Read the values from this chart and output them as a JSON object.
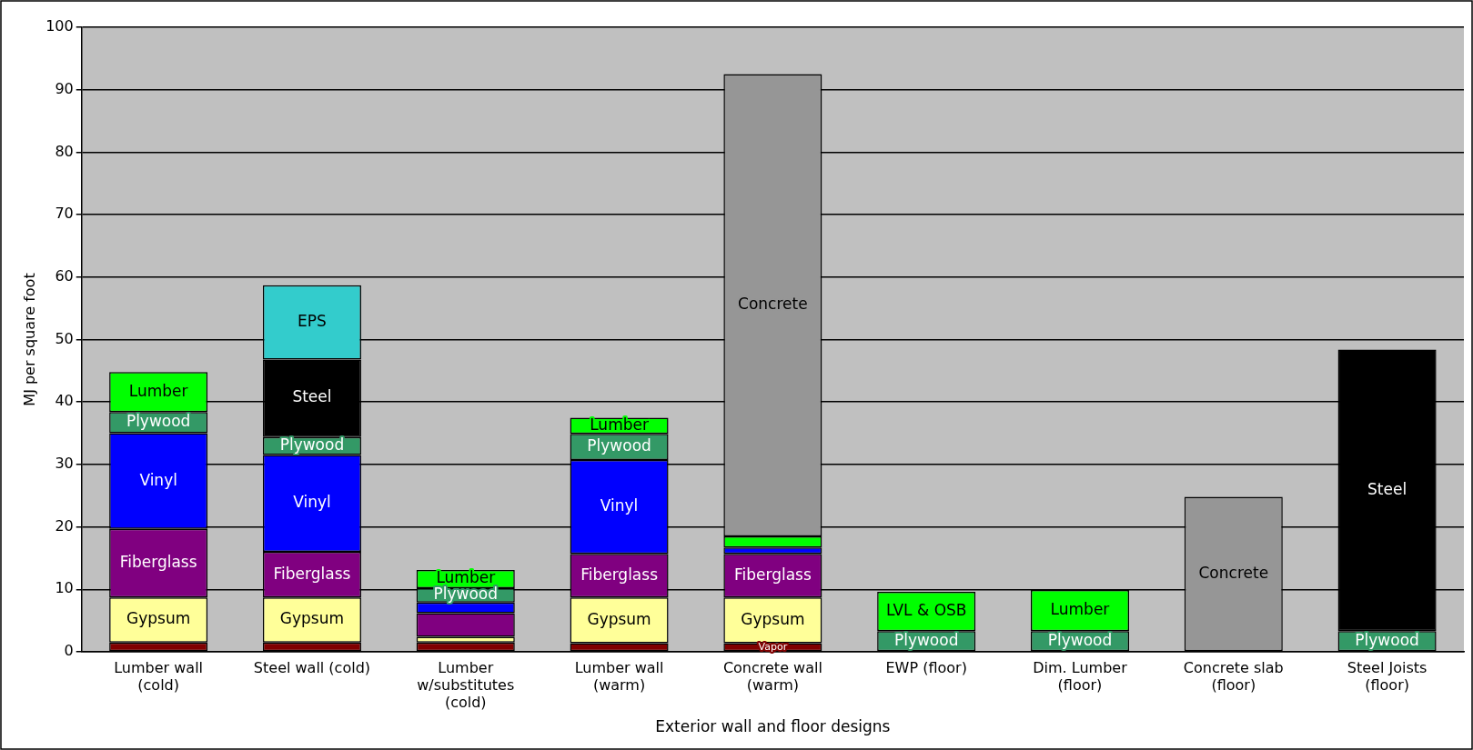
{
  "chart_data": {
    "type": "bar",
    "stacked": true,
    "xlabel": "Exterior wall and floor designs",
    "ylabel": "MJ per square foot",
    "categories": [
      "Lumber wall\n(cold)",
      "Steel wall (cold)",
      "Lumber\nw/substitutes\n(cold)",
      "Lumber wall\n(warm)",
      "Concrete wall\n(warm)",
      "EWP (floor)",
      "Dim. Lumber\n(floor)",
      "Concrete slab\n(floor)",
      "Steel Joists\n(floor)"
    ],
    "series": [
      {
        "color": "#800000",
        "values": [
          1.5,
          1.5,
          1.5,
          1.4,
          1.4,
          null,
          null,
          null,
          null
        ],
        "value_labels": [
          null,
          null,
          null,
          null,
          "Vapor",
          null,
          null,
          null,
          null
        ]
      },
      {
        "color": "#ffff99",
        "values": [
          7.2,
          7.2,
          0.9,
          7.3,
          7.3,
          null,
          null,
          null,
          null
        ],
        "value_labels": [
          "Gypsum",
          "Gypsum",
          null,
          "Gypsum",
          "Gypsum",
          null,
          null,
          null,
          null
        ]
      },
      {
        "color": "#800080",
        "values": [
          11,
          7.3,
          3.8,
          7,
          7,
          null,
          null,
          null,
          null
        ],
        "value_labels": [
          "Fiberglass",
          "Fiberglass",
          null,
          "Fiberglass",
          "Fiberglass",
          null,
          null,
          null,
          null
        ]
      },
      {
        "color": "#0000ff",
        "values": [
          15.3,
          15.5,
          1.7,
          15,
          1,
          null,
          null,
          null,
          null
        ],
        "value_labels": [
          "Vinyl",
          "Vinyl",
          null,
          "Vinyl",
          null,
          null,
          null,
          null,
          null
        ]
      },
      {
        "color": "#339966",
        "values": [
          3.4,
          2.9,
          2.3,
          4.2,
          null,
          3.3,
          3.3,
          null,
          3.3
        ],
        "value_labels": [
          "Plywood",
          "Plywood",
          "Plywood",
          "Plywood",
          null,
          "Plywood",
          "Plywood",
          null,
          "Plywood"
        ]
      },
      {
        "color": "#00ff00",
        "values": [
          6.4,
          null,
          2.9,
          2.6,
          1.8,
          null,
          6.6,
          null,
          null
        ],
        "value_labels": [
          "Lumber",
          null,
          "Lumber",
          "Lumber",
          null,
          null,
          "Lumber",
          null,
          null
        ]
      },
      {
        "color": "#00ff00",
        "values": [
          null,
          null,
          null,
          null,
          null,
          6.3,
          null,
          null,
          null
        ],
        "value_labels": [
          null,
          null,
          null,
          null,
          null,
          "LVL & OSB",
          null,
          null,
          null
        ]
      },
      {
        "color": "#000000",
        "values": [
          null,
          12.4,
          null,
          null,
          null,
          null,
          null,
          null,
          45.1
        ],
        "value_labels": [
          null,
          "Steel",
          null,
          null,
          null,
          null,
          null,
          null,
          "Steel"
        ]
      },
      {
        "color": "#33cccc",
        "values": [
          null,
          11.9,
          null,
          null,
          null,
          null,
          null,
          null,
          null
        ],
        "value_labels": [
          null,
          "EPS",
          null,
          null,
          null,
          null,
          null,
          null,
          null
        ]
      },
      {
        "color": "#969696",
        "values": [
          null,
          null,
          null,
          null,
          74,
          null,
          null,
          24.8,
          null
        ],
        "value_labels": [
          null,
          null,
          null,
          null,
          "Concrete",
          null,
          null,
          "Concrete",
          null
        ]
      }
    ],
    "ylim": [
      0,
      100
    ],
    "yticks": [
      0,
      10,
      20,
      30,
      40,
      50,
      60,
      70,
      80,
      90,
      100
    ],
    "grid": "y",
    "legend": false
  }
}
